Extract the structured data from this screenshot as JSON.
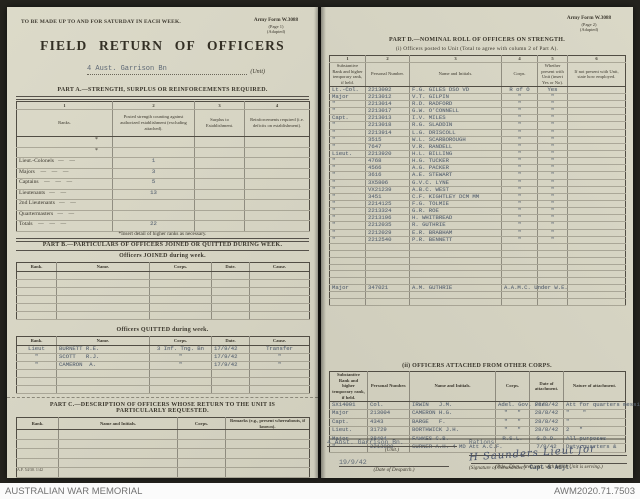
{
  "awm_bar": {
    "left": "AUSTRALIAN WAR MEMORIAL",
    "right": "AWM2020.71.7503"
  },
  "left_page": {
    "top_note": "TO BE MADE UP TO AND FOR SATURDAY IN EACH WEEK.",
    "form_ref": {
      "line1": "Army Form W.3088",
      "line2": "(Page 1)",
      "line3": "(Adapted)"
    },
    "title": "FIELD RETURN OF OFFICERS",
    "unit": {
      "value": "4 Aust. Garrison Bn",
      "label": "(Unit)"
    },
    "part_a": {
      "heading": "PART A.—STRENGTH, SURPLUS OR REINFORCEMENTS REQUIRED.",
      "header_rows": [
        [
          "1",
          "2",
          "3",
          "4"
        ],
        [
          "Ranks.",
          "Posted strength counting against authorized establishment (excluding attached).",
          "Surplus to Establishment.",
          "Reinforcements required (i.e. deficits on establishment)."
        ]
      ],
      "rows": [
        {
          "cells": [
            "*",
            "",
            "",
            ""
          ],
          "class": "star"
        },
        {
          "cells": [
            "*",
            "",
            "",
            ""
          ],
          "class": "star"
        },
        [
          "Lieut.-Colonels   —    —",
          "1",
          "",
          ""
        ],
        [
          "Majors    —    —    —",
          "3",
          "",
          ""
        ],
        [
          "Captains    —    —    —",
          "5",
          "",
          ""
        ],
        [
          "Lieutenants   —    —",
          "13",
          "",
          ""
        ],
        [
          "2nd Lieutenants   —    —",
          "",
          "",
          ""
        ],
        [
          "Quartermasters   —    —",
          "",
          "",
          ""
        ],
        {
          "cells": [
            "Totals    —    —    —",
            "22",
            "",
            ""
          ],
          "class": "totals"
        }
      ],
      "footnote": "*Insert detail of higher ranks as necessary."
    },
    "part_b": {
      "heading": "PART B.—PARTICULARS OF OFFICERS JOINED OR QUITTED DURING WEEK.",
      "joined": {
        "title": "Officers JOINED during week.",
        "header_rows": [
          [
            "Rank.",
            "Name.",
            "Corps.",
            "Date.",
            "Cause."
          ]
        ],
        "rows": [
          [
            "",
            "",
            "",
            "",
            ""
          ],
          [
            "",
            "",
            "",
            "",
            ""
          ],
          [
            "",
            "",
            "",
            "",
            ""
          ],
          [
            "",
            "",
            "",
            "",
            ""
          ],
          [
            "",
            "",
            "",
            "",
            ""
          ],
          [
            "",
            "",
            "",
            "",
            ""
          ]
        ]
      },
      "quitted": {
        "title": "Officers QUITTED during week.",
        "header_rows": [
          [
            "Rank.",
            "Name.",
            "Corps.",
            "Date.",
            "Cause."
          ]
        ],
        "rows": [
          [
            "Lieut",
            "BURNETT R.E.",
            "3 Inf. Tng. Bn",
            "17/9/42",
            "Transfer"
          ],
          [
            "\"",
            "SCOTT   R.J.",
            "\"",
            "17/9/42",
            "\""
          ],
          [
            "\"",
            "CAMERON  A.",
            "\"",
            "17/9/42",
            "\""
          ],
          [
            "",
            "",
            "",
            "",
            ""
          ],
          [
            "",
            "",
            "",
            "",
            ""
          ],
          [
            "",
            "",
            "",
            "",
            ""
          ]
        ]
      }
    },
    "part_c": {
      "heading": "PART C.—DESCRIPTION OF OFFICERS WHOSE RETURN TO THE UNIT IS PARTICULARLY REQUESTED.",
      "header_rows": [
        [
          "Rank.",
          "Name and Initials.",
          "Corps.",
          "Remarks (e.g., present whereabouts, if known)."
        ]
      ],
      "rows": [
        [
          "",
          "",
          "",
          ""
        ],
        [
          "",
          "",
          "",
          ""
        ],
        [
          "",
          "",
          "",
          ""
        ],
        [
          "",
          "",
          "",
          ""
        ],
        [
          "",
          "",
          "",
          ""
        ]
      ]
    },
    "footer_print": "A.F. 54/30. 1/42"
  },
  "right_page": {
    "form_ref": {
      "line1": "Army Form W.3088",
      "line2": "(Page 2)",
      "line3": "(Adapted)"
    },
    "part_d": {
      "heading": "PART D.—NOMINAL ROLL OF OFFICERS ON STRENGTH.",
      "sub_heading": "(i) Officers posted to Unit (Total to agree with column 2 of Part A).",
      "header_rows": [
        [
          "1",
          "2",
          "3",
          "4",
          "5",
          "6"
        ],
        [
          "Substantive Rank and higher temporary rank, if held.",
          "Personal Number.",
          "Name and Initials.",
          "Corps.",
          "Whether present with Unit (insert Yes or No).",
          "If not present with Unit, state how employed."
        ]
      ],
      "rows": [
        [
          "Lt.-Col.",
          "2213002",
          "F.G. GILES DSO VD",
          "R of O",
          "Yes",
          ""
        ],
        [
          "Major",
          "2213012",
          "V.T. GILPIN",
          "\"",
          "\"",
          ""
        ],
        [
          "\"",
          "2213014",
          "R.D. RADFORD",
          "\"",
          "\"",
          ""
        ],
        [
          "\"",
          "2213017",
          "G.W. O'CONNELL",
          "\"",
          "\"",
          ""
        ],
        [
          "Capt.",
          "2213013",
          "I.V. MILES",
          "\"",
          "\"",
          ""
        ],
        [
          "\"",
          "2213018",
          "R.G. SLADDIN",
          "\"",
          "\"",
          ""
        ],
        [
          "\"",
          "2213914",
          "L.G. DRISCOLL",
          "\"",
          "\"",
          ""
        ],
        [
          "\"",
          "3515",
          "W.L. SCARBOROUGH",
          "\"",
          "\"",
          ""
        ],
        [
          "\"",
          "7647",
          "V.R. RANDELL",
          "\"",
          "\"",
          ""
        ],
        [
          "Lieut.",
          "2213920",
          "H.L. BILLING",
          "\"",
          "\"",
          ""
        ],
        [
          "\"",
          "4768",
          "H.G. TUCKER",
          "\"",
          "\"",
          ""
        ],
        [
          "\"",
          "4566",
          "A.G. PACKER",
          "\"",
          "\"",
          ""
        ],
        [
          "\"",
          "3616",
          "A.E. STEWART",
          "\"",
          "\"",
          ""
        ],
        [
          "\"",
          "3X5806",
          "G.V.C. LYNE",
          "\"",
          "\"",
          ""
        ],
        [
          "\"",
          "VX21239",
          "A.B.C. WEST",
          "\"",
          "\"",
          ""
        ],
        [
          "\"",
          "3451",
          "C.F. KIGHTLEY DCM MM",
          "\"",
          "\"",
          ""
        ],
        [
          "\"",
          "2214125",
          "F.G. TOLMIE",
          "\"",
          "\"",
          ""
        ],
        [
          "\"",
          "2213324",
          "G.R. ROE",
          "\"",
          "\"",
          ""
        ],
        [
          "\"",
          "2213196",
          "H. WHITBREAD",
          "\"",
          "\"",
          ""
        ],
        [
          "\"",
          "2212035",
          "R. GUTHRIE",
          "\"",
          "\"",
          ""
        ],
        [
          "\"",
          "2212029",
          "E.R. BRABHAM",
          "\"",
          "\"",
          ""
        ],
        [
          "\"",
          "2212540",
          "P.R. BENNETT",
          "\"",
          "\"",
          ""
        ],
        [
          "",
          "",
          "",
          "",
          "",
          ""
        ],
        [
          "",
          "",
          "",
          "",
          "",
          ""
        ],
        [
          "",
          "",
          "",
          "",
          "",
          ""
        ],
        [
          "",
          "",
          "",
          "",
          "",
          ""
        ],
        [
          "",
          "",
          "",
          "",
          "",
          ""
        ],
        [
          "",
          "",
          "",
          "",
          "",
          ""
        ],
        [
          "Major",
          "347021",
          "A.M. GUTHRIE",
          "A.A.M.C. Under W.E.",
          "",
          ""
        ],
        [
          "",
          "",
          "",
          "",
          "",
          ""
        ],
        [
          "",
          "",
          "",
          "",
          "",
          ""
        ]
      ]
    },
    "attached": {
      "heading": "(ii) OFFICERS ATTACHED FROM OTHER CORPS.",
      "header_rows": [
        [
          "Substantive Rank and higher temporary rank, if held.",
          "Personal Number.",
          "Name and Initials.",
          "Corps.",
          "Date of attachment.",
          "Nature of attachment."
        ]
      ],
      "rows": [
        [
          "SX14001",
          "Col.",
          "IRWIN   J.M.",
          "Adel. Gov. Fce",
          "28/8/42",
          "Att for quarters messing & pay"
        ],
        [
          "Major",
          "213004",
          "CAMERON H.G.",
          "\"   \"",
          "28/8/42",
          "\"    \""
        ],
        [
          "Capt.",
          "4343",
          "BARGE   F.",
          "\"   \"",
          "28/8/42",
          "\""
        ],
        [
          "Lieut.",
          "31729",
          "BORTHWICK J.H.",
          "\"   \"",
          "28/8/42",
          "2   \""
        ],
        {
          "cells": [
            "Major",
            "38404",
            "FAWKES C.B.",
            "R.S.L.",
            "G.D.D.",
            "All purposes"
          ],
          "class": "strike"
        },
        [
          "\"",
          "2213080",
          "GURNER A.H. 4 MD Att A.C.F.",
          "",
          "7/9/42",
          "Duty quarters &"
        ]
      ]
    },
    "footer": {
      "unit_value": "4 Aust. Garrison Bn.",
      "unit_label": "(Unit.)",
      "rations": "Rations",
      "signature": "H Saunders Lieut for",
      "signature_label": "(Signature of Commander.)",
      "adjt_stamp": "Capt & Adjt.",
      "despatch_date": "19/9/42",
      "despatch_label": "(Date of Despatch.)",
      "serving_label": "(Bde., Divn., Area, etc., with which Unit is serving.)"
    }
  }
}
